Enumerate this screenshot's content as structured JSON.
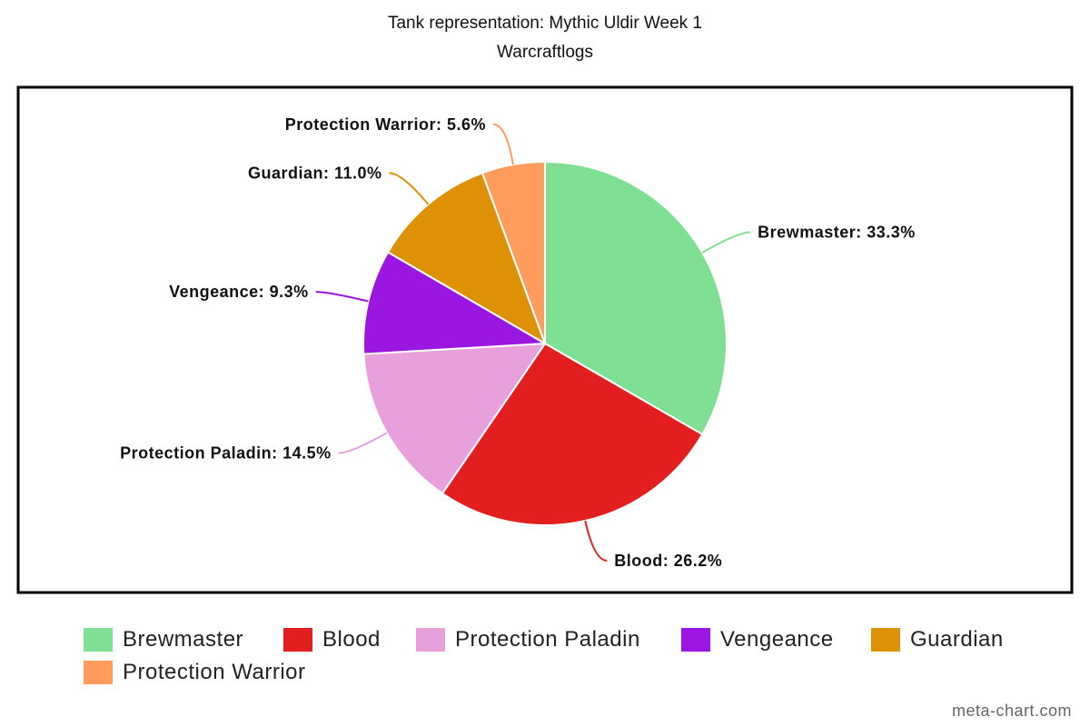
{
  "chart_data": {
    "type": "pie",
    "title": "Tank representation: Mythic Uldir Week 1",
    "subtitle": "Warcraftlogs",
    "slices": [
      {
        "name": "Brewmaster",
        "value": 33.3,
        "label": "Brewmaster: 33.3%",
        "color": "#7fe094"
      },
      {
        "name": "Blood",
        "value": 26.2,
        "label": "Blood: 26.2%",
        "color": "#e31e1e"
      },
      {
        "name": "Protection Paladin",
        "value": 14.5,
        "label": "Protection Paladin: 14.5%",
        "color": "#e8a0dc"
      },
      {
        "name": "Vengeance",
        "value": 9.3,
        "label": "Vengeance: 9.3%",
        "color": "#9b16e0"
      },
      {
        "name": "Guardian",
        "value": 11.0,
        "label": "Guardian: 11.0%",
        "color": "#de9104"
      },
      {
        "name": "Protection Warrior",
        "value": 5.6,
        "label": "Protection Warrior: 5.6%",
        "color": "#ff9b5c"
      }
    ],
    "legend_position": "bottom"
  },
  "credit": "meta-chart.com"
}
